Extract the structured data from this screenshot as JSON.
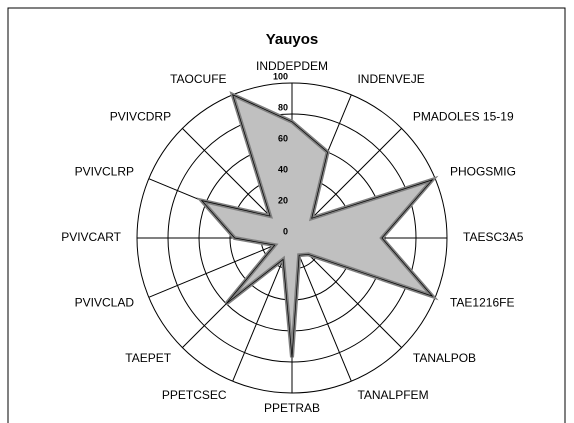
{
  "chart_data": {
    "type": "radar",
    "title": "Yauyos",
    "categories": [
      "INDDEPDEM",
      "INDENVEJE",
      "PMADOLES 15-19",
      "PHOGSMIG",
      "TAESC3A5",
      "TAE1216FE",
      "TANALPOB",
      "TANALPFEM",
      "PPETRAB",
      "PPETCSEC",
      "TAEPET",
      "PVIVCLAD",
      "PVIVCART",
      "PVIVCLRP",
      "PVIVCDRP",
      "TAOCUFE"
    ],
    "values": [
      75,
      60,
      18,
      98,
      58,
      98,
      15,
      12,
      77,
      15,
      60,
      12,
      37,
      63,
      20,
      100
    ],
    "color": "#c0c0c0",
    "line_color": "#808080",
    "rlim": [
      0,
      100
    ],
    "rticks": [
      0,
      20,
      40,
      60,
      80,
      100
    ]
  }
}
